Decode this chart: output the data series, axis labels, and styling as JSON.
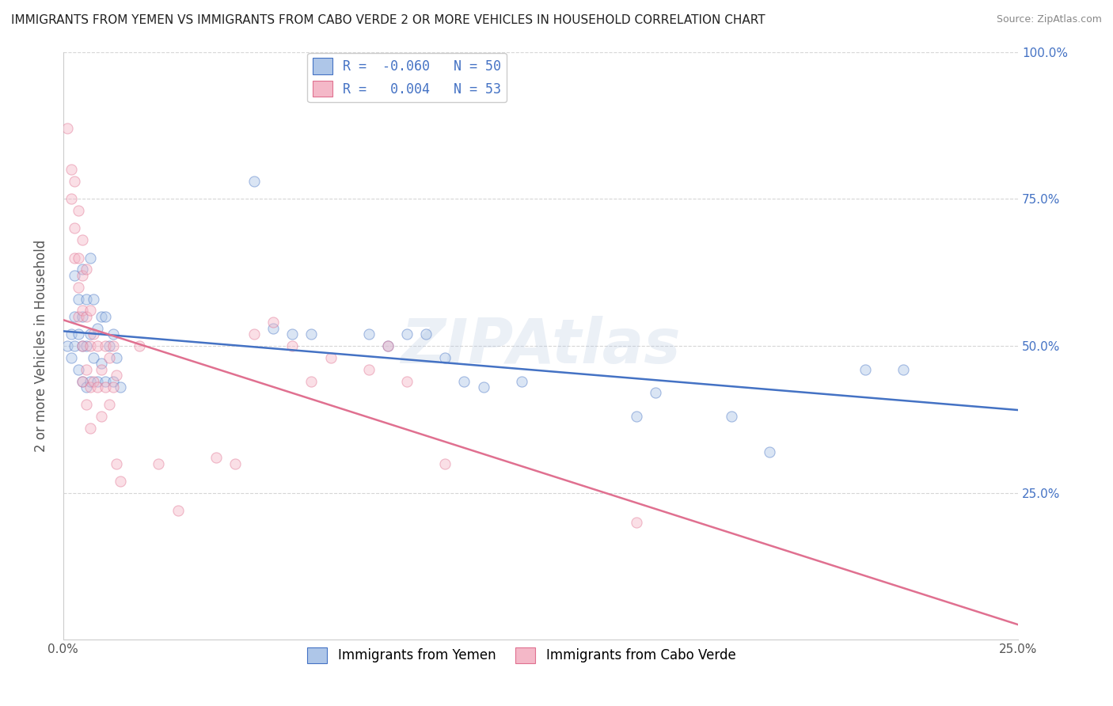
{
  "title": "IMMIGRANTS FROM YEMEN VS IMMIGRANTS FROM CABO VERDE 2 OR MORE VEHICLES IN HOUSEHOLD CORRELATION CHART",
  "source": "Source: ZipAtlas.com",
  "ylabel": "2 or more Vehicles in Household",
  "xlim": [
    0.0,
    0.25
  ],
  "ylim": [
    0.0,
    1.0
  ],
  "legend_entries": [
    {
      "label_r": "-0.060",
      "label_n": "50",
      "face_color": "#aec6e8",
      "edge_color": "#4472c4"
    },
    {
      "label_r": " 0.004",
      "label_n": "53",
      "face_color": "#f4b8c8",
      "edge_color": "#e07090"
    }
  ],
  "trendline_yemen_color": "#4472c4",
  "trendline_cabo_color": "#e07090",
  "watermark": "ZIPAtlas",
  "scatter_yemen": [
    [
      0.001,
      0.5
    ],
    [
      0.002,
      0.52
    ],
    [
      0.002,
      0.48
    ],
    [
      0.003,
      0.62
    ],
    [
      0.003,
      0.55
    ],
    [
      0.003,
      0.5
    ],
    [
      0.004,
      0.58
    ],
    [
      0.004,
      0.52
    ],
    [
      0.004,
      0.46
    ],
    [
      0.005,
      0.63
    ],
    [
      0.005,
      0.55
    ],
    [
      0.005,
      0.5
    ],
    [
      0.005,
      0.44
    ],
    [
      0.006,
      0.58
    ],
    [
      0.006,
      0.5
    ],
    [
      0.006,
      0.43
    ],
    [
      0.007,
      0.65
    ],
    [
      0.007,
      0.52
    ],
    [
      0.007,
      0.44
    ],
    [
      0.008,
      0.58
    ],
    [
      0.008,
      0.48
    ],
    [
      0.009,
      0.53
    ],
    [
      0.009,
      0.44
    ],
    [
      0.01,
      0.55
    ],
    [
      0.01,
      0.47
    ],
    [
      0.011,
      0.55
    ],
    [
      0.011,
      0.44
    ],
    [
      0.012,
      0.5
    ],
    [
      0.013,
      0.52
    ],
    [
      0.013,
      0.44
    ],
    [
      0.014,
      0.48
    ],
    [
      0.015,
      0.43
    ],
    [
      0.05,
      0.78
    ],
    [
      0.055,
      0.53
    ],
    [
      0.06,
      0.52
    ],
    [
      0.065,
      0.52
    ],
    [
      0.08,
      0.52
    ],
    [
      0.085,
      0.5
    ],
    [
      0.09,
      0.52
    ],
    [
      0.095,
      0.52
    ],
    [
      0.1,
      0.48
    ],
    [
      0.105,
      0.44
    ],
    [
      0.11,
      0.43
    ],
    [
      0.12,
      0.44
    ],
    [
      0.15,
      0.38
    ],
    [
      0.155,
      0.42
    ],
    [
      0.175,
      0.38
    ],
    [
      0.185,
      0.32
    ],
    [
      0.21,
      0.46
    ],
    [
      0.22,
      0.46
    ]
  ],
  "scatter_cabo": [
    [
      0.001,
      0.87
    ],
    [
      0.002,
      0.8
    ],
    [
      0.002,
      0.75
    ],
    [
      0.003,
      0.78
    ],
    [
      0.003,
      0.7
    ],
    [
      0.003,
      0.65
    ],
    [
      0.004,
      0.73
    ],
    [
      0.004,
      0.65
    ],
    [
      0.004,
      0.6
    ],
    [
      0.004,
      0.55
    ],
    [
      0.005,
      0.68
    ],
    [
      0.005,
      0.62
    ],
    [
      0.005,
      0.56
    ],
    [
      0.005,
      0.5
    ],
    [
      0.005,
      0.44
    ],
    [
      0.006,
      0.63
    ],
    [
      0.006,
      0.55
    ],
    [
      0.006,
      0.46
    ],
    [
      0.006,
      0.4
    ],
    [
      0.007,
      0.56
    ],
    [
      0.007,
      0.5
    ],
    [
      0.007,
      0.43
    ],
    [
      0.007,
      0.36
    ],
    [
      0.008,
      0.52
    ],
    [
      0.008,
      0.44
    ],
    [
      0.009,
      0.5
    ],
    [
      0.009,
      0.43
    ],
    [
      0.01,
      0.46
    ],
    [
      0.01,
      0.38
    ],
    [
      0.011,
      0.5
    ],
    [
      0.011,
      0.43
    ],
    [
      0.012,
      0.48
    ],
    [
      0.012,
      0.4
    ],
    [
      0.013,
      0.5
    ],
    [
      0.013,
      0.43
    ],
    [
      0.014,
      0.45
    ],
    [
      0.014,
      0.3
    ],
    [
      0.015,
      0.27
    ],
    [
      0.02,
      0.5
    ],
    [
      0.025,
      0.3
    ],
    [
      0.03,
      0.22
    ],
    [
      0.04,
      0.31
    ],
    [
      0.045,
      0.3
    ],
    [
      0.05,
      0.52
    ],
    [
      0.055,
      0.54
    ],
    [
      0.06,
      0.5
    ],
    [
      0.065,
      0.44
    ],
    [
      0.07,
      0.48
    ],
    [
      0.08,
      0.46
    ],
    [
      0.085,
      0.5
    ],
    [
      0.09,
      0.44
    ],
    [
      0.1,
      0.3
    ],
    [
      0.15,
      0.2
    ]
  ],
  "background_color": "#ffffff",
  "grid_color": "#cccccc",
  "title_color": "#222222",
  "axis_color": "#555555",
  "right_tick_color": "#4472c4",
  "marker_size": 90,
  "marker_alpha": 0.45
}
